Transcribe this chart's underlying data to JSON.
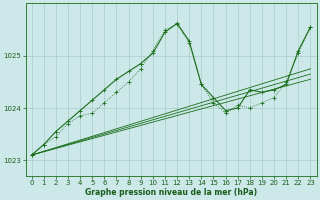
{
  "title": "Graphe pression niveau de la mer (hPa)",
  "bg_color": "#cce8e8",
  "grid_color": "#aacccc",
  "line_color": "#1a6e1a",
  "xlim": [
    -0.5,
    23.5
  ],
  "ylim": [
    1022.7,
    1026.0
  ],
  "yticks": [
    1023,
    1024,
    1025
  ],
  "xticks": [
    0,
    1,
    2,
    3,
    4,
    5,
    6,
    7,
    8,
    9,
    10,
    11,
    12,
    13,
    14,
    15,
    16,
    17,
    18,
    19,
    20,
    21,
    22,
    23
  ],
  "series_dotted": {
    "x": [
      0,
      1,
      2,
      3,
      4,
      5,
      6,
      7,
      8,
      9,
      10,
      11,
      12,
      13,
      14,
      15,
      16,
      17,
      18,
      19,
      20,
      21,
      22,
      23
    ],
    "y": [
      1023.1,
      1023.3,
      1023.45,
      1023.7,
      1023.85,
      1023.9,
      1024.1,
      1024.3,
      1024.5,
      1024.75,
      1025.1,
      1025.5,
      1025.6,
      1025.25,
      1024.45,
      1024.1,
      1023.9,
      1024.05,
      1024.0,
      1024.1,
      1024.2,
      1024.5,
      1025.05,
      1025.55
    ]
  },
  "series_main": {
    "x": [
      0,
      1,
      2,
      3,
      4,
      5,
      6,
      7,
      8,
      9,
      10,
      11,
      12,
      13,
      14,
      15,
      16,
      17,
      18,
      19,
      20,
      21,
      22,
      23
    ],
    "y": [
      1023.1,
      1023.3,
      1023.55,
      1023.75,
      1023.95,
      1024.15,
      1024.35,
      1024.55,
      1024.7,
      1024.85,
      1025.05,
      1025.45,
      1025.62,
      1025.28,
      1024.45,
      1024.2,
      1023.95,
      1024.0,
      1024.35,
      1024.3,
      1024.35,
      1024.45,
      1025.1,
      1025.55
    ]
  },
  "series_linear1": {
    "x": [
      0,
      23
    ],
    "y": [
      1023.1,
      1024.55
    ]
  },
  "series_linear2": {
    "x": [
      0,
      23
    ],
    "y": [
      1023.1,
      1024.65
    ]
  },
  "series_linear3": {
    "x": [
      0,
      23
    ],
    "y": [
      1023.1,
      1024.75
    ]
  }
}
